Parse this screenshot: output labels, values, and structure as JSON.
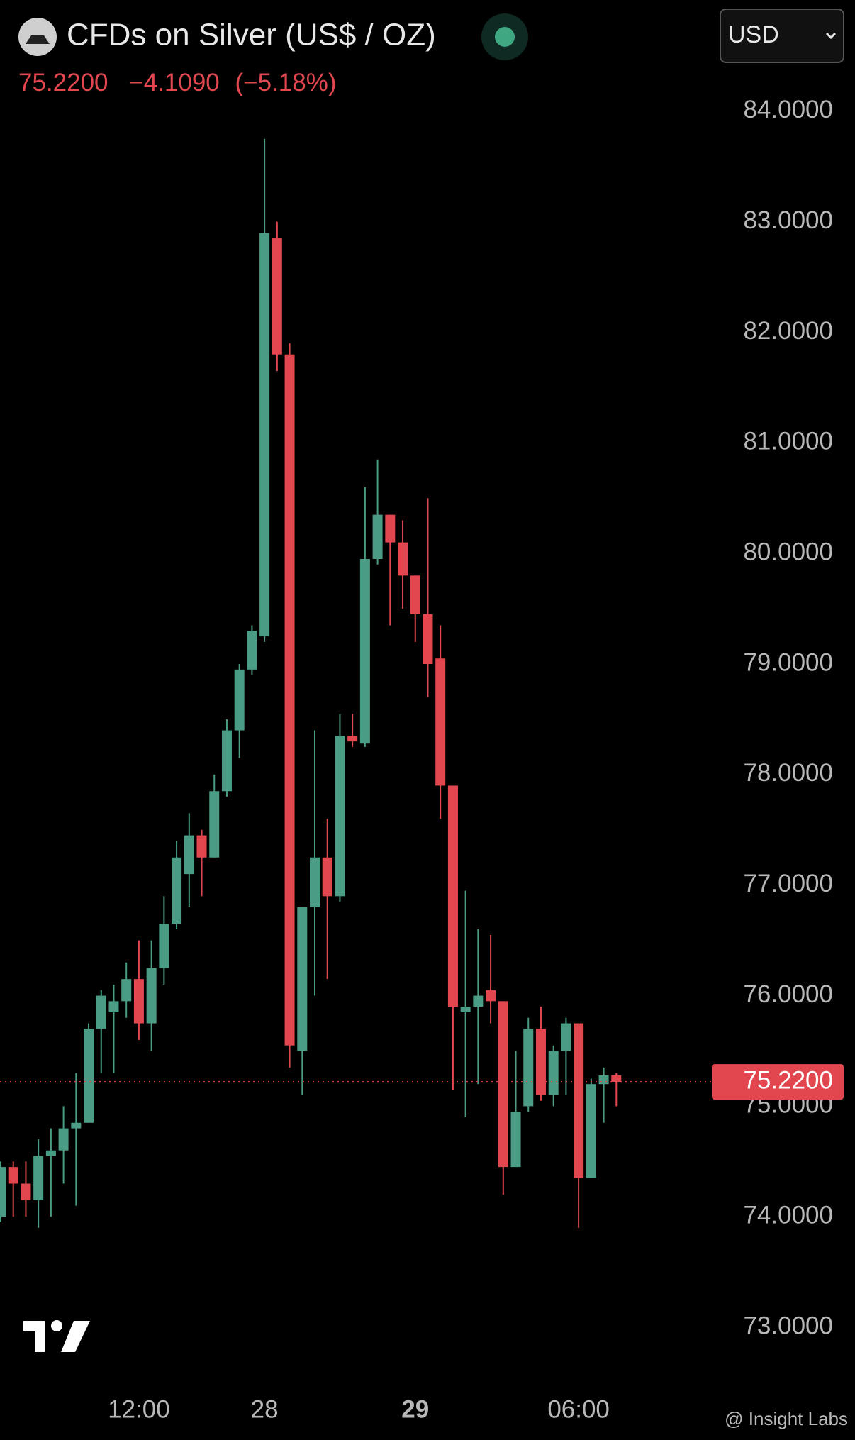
{
  "header": {
    "title": "CFDs on Silver (US$ / OZ)",
    "price": "75.2200",
    "change": "−4.1090",
    "change_pct": "(−5.18%)",
    "currency": "USD"
  },
  "watermark": "@ Insight Labs",
  "chart_data": {
    "type": "candlestick",
    "categories": [
      null,
      null,
      null,
      null,
      null,
      null,
      null,
      null,
      null,
      null,
      null,
      "12:00",
      null,
      null,
      null,
      null,
      null,
      null,
      null,
      null,
      null,
      "28",
      null,
      null,
      null,
      null,
      null,
      null,
      null,
      null,
      null,
      null,
      null,
      "29",
      null,
      null,
      null,
      null,
      null,
      null,
      null,
      null,
      null,
      null,
      null,
      null,
      "06:00",
      null,
      null,
      null
    ],
    "open": [
      74.0,
      74.45,
      74.3,
      74.15,
      74.55,
      74.6,
      74.8,
      74.85,
      75.7,
      75.85,
      75.95,
      76.15,
      75.75,
      76.25,
      76.65,
      77.1,
      77.45,
      77.25,
      77.85,
      78.4,
      78.95,
      79.25,
      82.85,
      81.8,
      75.5,
      76.8,
      77.25,
      76.9,
      78.35,
      78.28,
      79.95,
      80.35,
      80.1,
      79.8,
      79.45,
      79.05,
      77.9,
      75.85,
      75.9,
      76.05,
      75.95,
      74.45,
      75.0,
      75.7,
      75.1,
      75.5,
      75.75,
      74.35,
      75.2,
      75.28
    ],
    "high": [
      74.5,
      74.5,
      74.5,
      74.7,
      74.8,
      75.0,
      75.3,
      75.75,
      76.05,
      76.1,
      76.3,
      76.5,
      76.5,
      76.9,
      77.4,
      77.65,
      77.5,
      78.0,
      78.5,
      79.0,
      79.35,
      83.75,
      83.0,
      81.9,
      76.8,
      78.4,
      77.6,
      78.55,
      78.55,
      80.6,
      80.85,
      80.35,
      80.3,
      79.8,
      80.5,
      79.35,
      77.9,
      76.95,
      76.6,
      76.55,
      75.95,
      75.5,
      75.8,
      75.9,
      75.55,
      75.8,
      75.75,
      75.25,
      75.35,
      75.3
    ],
    "low": [
      73.95,
      74.0,
      74.0,
      73.9,
      74.0,
      74.3,
      74.1,
      74.85,
      75.3,
      75.3,
      75.8,
      75.6,
      75.5,
      76.1,
      76.6,
      76.8,
      76.9,
      77.25,
      77.8,
      78.15,
      78.9,
      79.2,
      81.65,
      75.35,
      75.1,
      76.0,
      76.15,
      76.85,
      78.25,
      78.25,
      79.9,
      79.35,
      79.5,
      79.2,
      78.7,
      77.6,
      75.15,
      74.9,
      75.2,
      75.75,
      74.2,
      74.45,
      74.95,
      75.05,
      75.0,
      75.1,
      73.9,
      74.35,
      74.85,
      75.0
    ],
    "close": [
      74.45,
      74.3,
      74.15,
      74.55,
      74.6,
      74.8,
      74.85,
      75.7,
      76.0,
      75.95,
      76.15,
      75.75,
      76.25,
      76.65,
      77.25,
      77.45,
      77.25,
      77.85,
      78.4,
      78.95,
      79.3,
      82.9,
      81.8,
      75.55,
      76.8,
      77.25,
      76.9,
      78.35,
      78.3,
      79.95,
      80.35,
      80.1,
      79.8,
      79.45,
      79.0,
      77.9,
      75.9,
      75.9,
      76.0,
      75.95,
      74.45,
      74.95,
      75.7,
      75.1,
      75.5,
      75.75,
      74.35,
      75.2,
      75.28,
      75.22
    ],
    "up_color": "#4a9c84",
    "down_color": "#e2474f",
    "last_price": {
      "value": 75.22,
      "label": "75.2200"
    },
    "ylim": [
      72.5,
      85
    ],
    "yticks": [
      {
        "value": 73,
        "label": "73.0000"
      },
      {
        "value": 74,
        "label": "74.0000"
      },
      {
        "value": 75,
        "label": "75.0000"
      },
      {
        "value": 76,
        "label": "76.0000"
      },
      {
        "value": 77,
        "label": "77.0000"
      },
      {
        "value": 78,
        "label": "78.0000"
      },
      {
        "value": 79,
        "label": "79.0000"
      },
      {
        "value": 80,
        "label": "80.0000"
      },
      {
        "value": 81,
        "label": "81.0000"
      },
      {
        "value": 82,
        "label": "82.0000"
      },
      {
        "value": 83,
        "label": "83.0000"
      },
      {
        "value": 84,
        "label": "84.0000"
      }
    ]
  }
}
